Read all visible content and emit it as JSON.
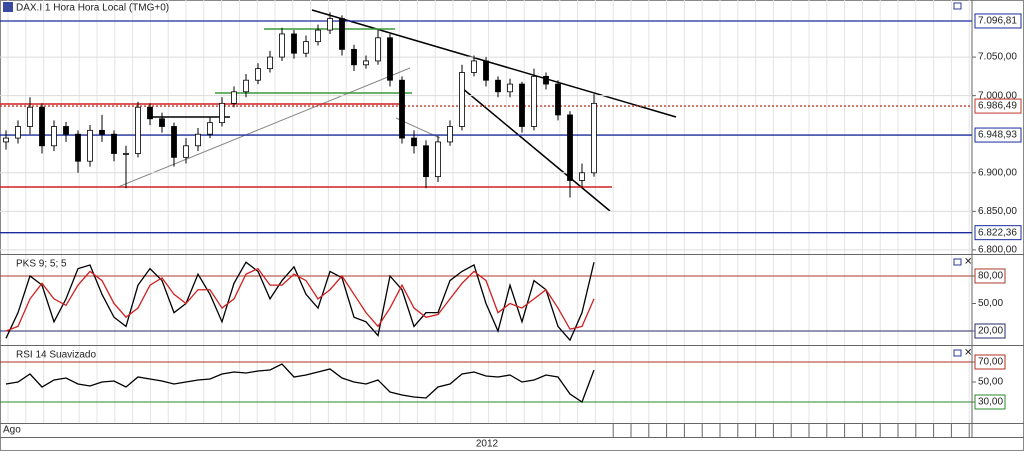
{
  "chart_data": [
    {
      "type": "candlestick",
      "title": "DAX.I 1 Hora Hora Local (TMG+0)",
      "open": [
        6940,
        6945,
        6960,
        6985,
        6935,
        6960,
        6950,
        6915,
        6955,
        6950,
        6925,
        6925,
        6985,
        6970,
        6960,
        6920,
        6935,
        6950,
        6965,
        6990,
        7005,
        7020,
        7035,
        7050,
        7080,
        7055,
        7070,
        7085,
        7100,
        7060,
        7040,
        7045,
        7075,
        7020,
        6945,
        6935,
        6895,
        6940,
        6960,
        7030,
        7045,
        7020,
        7005,
        7015,
        6960,
        7025,
        7015,
        6975,
        6890,
        6900
      ],
      "high": [
        6955,
        6968,
        6998,
        6990,
        6968,
        6966,
        6955,
        6962,
        6975,
        6955,
        6935,
        6992,
        6990,
        6978,
        6965,
        6945,
        6958,
        6972,
        6998,
        7012,
        7028,
        7042,
        7058,
        7088,
        7085,
        7078,
        7092,
        7108,
        7104,
        7066,
        7052,
        7085,
        7080,
        7025,
        6955,
        6942,
        6948,
        6968,
        7040,
        7052,
        7050,
        7025,
        7022,
        7018,
        7035,
        7030,
        7020,
        6980,
        6912,
        7002
      ],
      "low": [
        6930,
        6938,
        6950,
        6925,
        6928,
        6940,
        6900,
        6908,
        6940,
        6915,
        6880,
        6920,
        6962,
        6952,
        6908,
        6912,
        6928,
        6945,
        6960,
        6985,
        6998,
        7015,
        7030,
        7045,
        7048,
        7050,
        7065,
        7080,
        7052,
        7032,
        7035,
        7040,
        7012,
        6938,
        6925,
        6880,
        6888,
        6935,
        6955,
        7025,
        7012,
        6998,
        6998,
        6952,
        6955,
        7008,
        6968,
        6868,
        6880,
        6895
      ],
      "close": [
        6945,
        6960,
        6985,
        6935,
        6960,
        6950,
        6915,
        6955,
        6950,
        6925,
        6925,
        6985,
        6970,
        6960,
        6920,
        6935,
        6950,
        6965,
        6990,
        7005,
        7020,
        7035,
        7050,
        7080,
        7055,
        7070,
        7085,
        7100,
        7060,
        7040,
        7045,
        7075,
        7020,
        6945,
        6935,
        6895,
        6940,
        6960,
        7030,
        7045,
        7020,
        7005,
        7015,
        6960,
        7025,
        7015,
        6975,
        6890,
        6900,
        6990
      ],
      "ylim": [
        6796,
        7124
      ],
      "yticks": [
        {
          "value": 7050,
          "label": "7.050,00"
        },
        {
          "value": 7000,
          "label": "7.000,00"
        },
        {
          "value": 6900,
          "label": "6.900,00"
        },
        {
          "value": 6850,
          "label": "6.850,00"
        },
        {
          "value": 6800,
          "label": "6.800,00"
        }
      ],
      "levels": [
        {
          "value": 7096.81,
          "label": "7.096,81",
          "color": "#1a2b9c",
          "text_color": "#c0392b",
          "dashed": false
        },
        {
          "value": 6986.49,
          "label": "6.986,49",
          "color": "#c0392b",
          "text_color": "#1a2b9c",
          "dashed": true
        },
        {
          "value": 6948.93,
          "label": "6.948,93",
          "color": "#1a2b9c",
          "text_color": "#c0392b",
          "dashed": false
        },
        {
          "value": 6822.36,
          "label": "6.822,36",
          "color": "#1a2b9c",
          "text_color": "#c0392b",
          "dashed": false
        }
      ],
      "grid": true,
      "period_labels": [
        "Ago",
        "2012"
      ]
    },
    {
      "type": "line",
      "title": "PKS 9; 5; 5",
      "series": [
        {
          "color": "#000000",
          "values": [
            12,
            40,
            80,
            70,
            30,
            55,
            88,
            92,
            60,
            35,
            25,
            70,
            88,
            75,
            40,
            50,
            82,
            60,
            30,
            72,
            95,
            85,
            55,
            75,
            90,
            60,
            45,
            85,
            78,
            35,
            30,
            15,
            80,
            65,
            25,
            40,
            40,
            75,
            85,
            92,
            50,
            20,
            70,
            30,
            75,
            65,
            25,
            10,
            40,
            95
          ]
        },
        {
          "color": "#d02020",
          "values": [
            20,
            25,
            55,
            72,
            55,
            48,
            70,
            85,
            75,
            50,
            35,
            45,
            70,
            78,
            60,
            50,
            65,
            65,
            45,
            55,
            82,
            88,
            70,
            70,
            82,
            75,
            55,
            65,
            80,
            60,
            40,
            25,
            45,
            70,
            45,
            35,
            38,
            55,
            72,
            85,
            75,
            40,
            50,
            45,
            55,
            65,
            45,
            22,
            25,
            55
          ]
        }
      ],
      "ylim": [
        6.9,
        101.8
      ],
      "yticks": [
        {
          "value": 80,
          "label": "80,00"
        },
        {
          "value": 50,
          "label": "50,00"
        },
        {
          "value": 20,
          "label": "20,00"
        }
      ],
      "levels": [
        {
          "value": 80,
          "color": "#a83a2a"
        },
        {
          "value": 20,
          "color": "#2a2a6a"
        }
      ]
    },
    {
      "type": "line",
      "title": "RSI 14 Suavizado",
      "series": [
        {
          "color": "#000000",
          "values": [
            48,
            50,
            58,
            45,
            52,
            54,
            48,
            46,
            50,
            51,
            45,
            55,
            53,
            51,
            48,
            50,
            52,
            53,
            58,
            60,
            59,
            61,
            62,
            68,
            55,
            57,
            60,
            63,
            54,
            50,
            48,
            52,
            40,
            37,
            35,
            34,
            45,
            48,
            58,
            60,
            56,
            55,
            57,
            50,
            52,
            57,
            55,
            38,
            30,
            62
          ]
        }
      ],
      "ylim": [
        9,
        85
      ],
      "yticks": [
        {
          "value": 70,
          "label": "70,00"
        },
        {
          "value": 50,
          "label": "50,00"
        },
        {
          "value": 30,
          "label": "30,00"
        }
      ],
      "levels": [
        {
          "value": 70,
          "color": "#b03020"
        },
        {
          "value": 30,
          "color": "#2a8a2a"
        }
      ]
    }
  ]
}
